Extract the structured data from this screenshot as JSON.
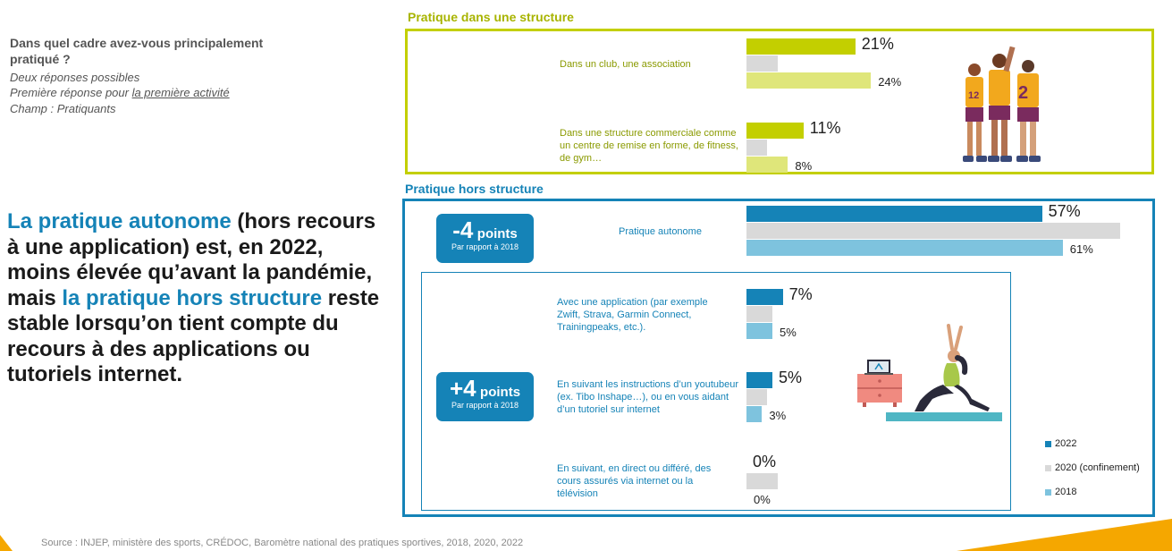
{
  "question": {
    "title": "Dans quel cadre avez-vous principalement pratiqué ?",
    "note1": "Deux réponses possibles",
    "note2_prefix": "Première réponse pour ",
    "note2_underlined": "la première activité",
    "note3": "Champ : Pratiquants"
  },
  "headline": {
    "p1": "La pratique autonome",
    "p2": " (hors recours à une application) est, en 2022, moins élevée qu’avant la pandémie, mais ",
    "p3": "la pratique hors structure",
    "p4": " reste stable lorsqu’on tient compte du recours à des applications ou tutoriels internet."
  },
  "section1": {
    "title": "Pratique dans une structure"
  },
  "section2": {
    "title": "Pratique hors structure"
  },
  "badges": [
    {
      "num": "-4",
      "unit": "points",
      "sub": "Par rapport à 2018"
    },
    {
      "num": "+4",
      "unit": "points",
      "sub": "Par rapport à 2018"
    }
  ],
  "colors": {
    "structure_2022": "#c3cf00",
    "structure_2018": "#dfe67a",
    "gray_2020": "#d9d9d9",
    "hors_2022": "#1583b7",
    "hors_2018": "#7ec3de",
    "frame_structure": "#c3cf00",
    "frame_hors": "#1583b7"
  },
  "chart_data": {
    "type": "bar",
    "orientation": "horizontal",
    "unit": "%",
    "legend": [
      "2022",
      "2020 (confinement)",
      "2018"
    ],
    "legend_position": "bottom-right",
    "groups": [
      {
        "label": "Dans un club, une association",
        "section": "Pratique dans une structure",
        "v2022": 21,
        "v2020": 6,
        "v2018": 24,
        "label2022": "21%",
        "label2018": "24%"
      },
      {
        "label": "Dans une structure commerciale comme un centre de remise en forme, de fitness, de gym…",
        "section": "Pratique dans une structure",
        "v2022": 11,
        "v2020": 4,
        "v2018": 8,
        "label2022": "11%",
        "label2018": "8%"
      },
      {
        "label": "Pratique autonome",
        "section": "Pratique hors structure",
        "v2022": 57,
        "v2020": 72,
        "v2018": 61,
        "label2022": "57%",
        "label2018": "61%"
      },
      {
        "label": "Avec une application (par exemple Zwift, Strava, Garmin Connect, Trainingpeaks, etc.).",
        "section": "Pratique hors structure",
        "v2022": 7,
        "v2020": 5,
        "v2018": 5,
        "label2022": "7%",
        "label2018": "5%"
      },
      {
        "label": "En suivant les instructions d’un youtubeur (ex. Tibo Inshape…), ou en vous aidant d’un tutoriel sur internet",
        "section": "Pratique hors structure",
        "v2022": 5,
        "v2020": 4,
        "v2018": 3,
        "label2022": "5%",
        "label2018": "3%"
      },
      {
        "label": "En suivant, en direct ou différé, des cours assurés via internet ou la télévision",
        "section": "Pratique hors structure",
        "v2022": 0,
        "v2020": 6,
        "v2018": 0,
        "label2022": "0%",
        "label2018": "0%"
      }
    ]
  },
  "source": "Source : INJEP, ministère des sports, CRÉDOC, Baromètre national des pratiques sportives, 2018, 2020, 2022"
}
